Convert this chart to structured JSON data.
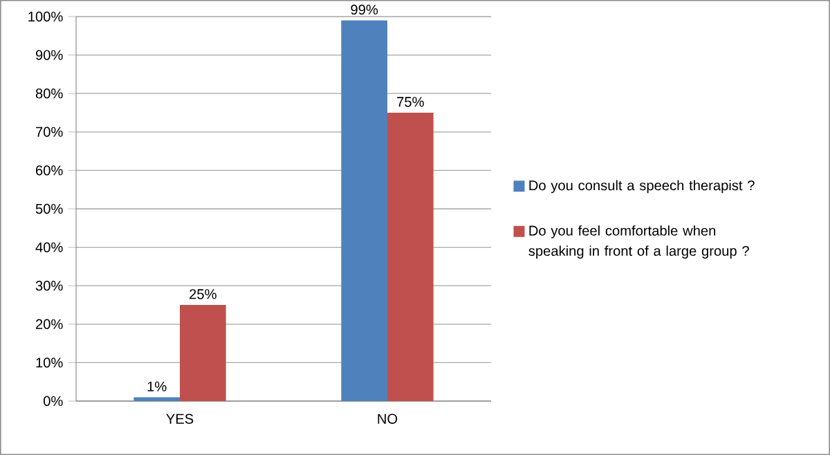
{
  "chart_data": {
    "type": "bar",
    "categories": [
      "YES",
      "NO"
    ],
    "series": [
      {
        "name": "Do you consult a speech therapist ?",
        "color": "#4f81bd",
        "values": [
          1,
          99
        ],
        "value_labels": [
          "1%",
          "99%"
        ]
      },
      {
        "name": "Do you feel comfortable when speaking in front of a large group ?",
        "color": "#c0504d",
        "values": [
          25,
          75
        ],
        "value_labels": [
          "25%",
          "75%"
        ]
      }
    ],
    "ylim": [
      0,
      100
    ],
    "yticks": [
      {
        "value": 0,
        "label": "0%"
      },
      {
        "value": 10,
        "label": "10%"
      },
      {
        "value": 20,
        "label": "20%"
      },
      {
        "value": 30,
        "label": "30%"
      },
      {
        "value": 40,
        "label": "40%"
      },
      {
        "value": 50,
        "label": "50%"
      },
      {
        "value": 60,
        "label": "60%"
      },
      {
        "value": 70,
        "label": "70%"
      },
      {
        "value": 80,
        "label": "80%"
      },
      {
        "value": 90,
        "label": "90%"
      },
      {
        "value": 100,
        "label": "100%"
      }
    ],
    "grid": "y",
    "legend": "right"
  }
}
